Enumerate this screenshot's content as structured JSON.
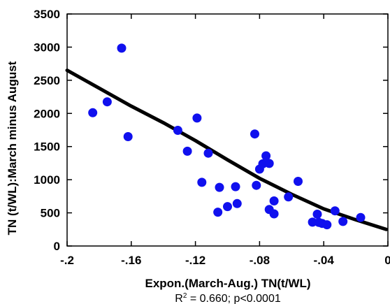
{
  "chart_data": {
    "type": "scatter",
    "title": "",
    "xlabel": "Expon.(March-Aug.) TN(t/WL)",
    "ylabel": "TN (t/WL):March minus  August",
    "xlim": [
      -0.2,
      0
    ],
    "ylim": [
      0,
      3500
    ],
    "x_ticks": [
      -0.2,
      -0.16,
      -0.12,
      -0.08,
      -0.04,
      0
    ],
    "x_tick_labels": [
      "-.2",
      "-.16",
      "-.12",
      "-.08",
      "-.04",
      "0"
    ],
    "y_ticks": [
      0,
      500,
      1000,
      1500,
      2000,
      2500,
      3000,
      3500
    ],
    "y_tick_labels": [
      "0",
      "500",
      "1000",
      "1500",
      "2000",
      "2500",
      "3000",
      "3500"
    ],
    "annotation": {
      "r2_prefix": "R",
      "r2_sup": "2",
      "r2_suffix": " = 0.660; p<0.0001"
    },
    "grid": false,
    "legend": "none",
    "point_color": "#1010ee",
    "line_color": "#000000",
    "series": [
      {
        "kind": "points",
        "x": [
          -0.184,
          -0.175,
          -0.166,
          -0.162,
          -0.131,
          -0.125,
          -0.119,
          -0.112,
          -0.116,
          -0.106,
          -0.105,
          -0.1,
          -0.095,
          -0.094,
          -0.082,
          -0.083,
          -0.08,
          -0.078,
          -0.076,
          -0.074,
          -0.074,
          -0.071,
          -0.071,
          -0.062,
          -0.056,
          -0.047,
          -0.044,
          -0.043,
          -0.041,
          -0.038,
          -0.033,
          -0.028,
          -0.017
        ],
        "y": [
          2010,
          2175,
          2985,
          1650,
          1745,
          1430,
          1930,
          1400,
          960,
          510,
          885,
          595,
          895,
          640,
          915,
          1690,
          1160,
          1240,
          1360,
          1245,
          550,
          485,
          680,
          740,
          975,
          360,
          480,
          355,
          340,
          320,
          530,
          370,
          430
        ]
      },
      {
        "kind": "fit-line",
        "x": [
          -0.2,
          -0.18,
          -0.16,
          -0.14,
          -0.12,
          -0.1,
          -0.08,
          -0.06,
          -0.04,
          -0.02,
          -0.001
        ],
        "y": [
          2650,
          2380,
          2110,
          1860,
          1590,
          1300,
          1020,
          780,
          560,
          395,
          250
        ]
      }
    ]
  }
}
